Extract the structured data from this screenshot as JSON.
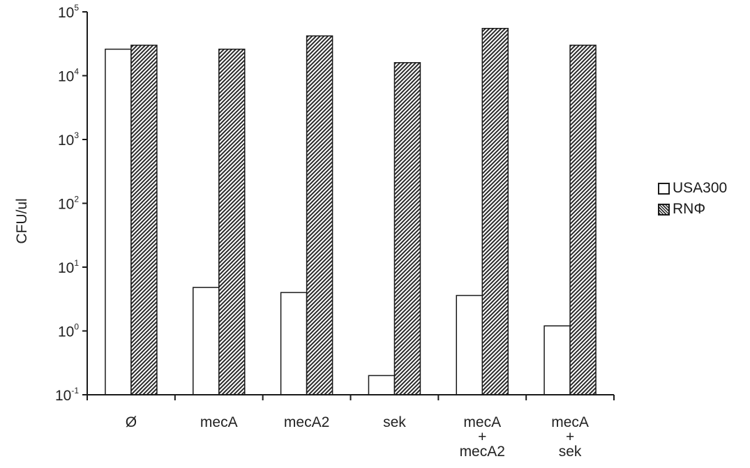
{
  "chart_data": {
    "type": "bar",
    "scale": "log",
    "ylabel": "CFU/ul",
    "xlabel": "",
    "title": "",
    "yticks": [
      {
        "base": "10",
        "exp": "-1",
        "value": 0.1
      },
      {
        "base": "10",
        "exp": "0",
        "value": 1
      },
      {
        "base": "10",
        "exp": "1",
        "value": 10
      },
      {
        "base": "10",
        "exp": "2",
        "value": 100
      },
      {
        "base": "10",
        "exp": "3",
        "value": 1000
      },
      {
        "base": "10",
        "exp": "4",
        "value": 10000
      },
      {
        "base": "10",
        "exp": "5",
        "value": 100000
      }
    ],
    "ylim": [
      0.1,
      100000
    ],
    "categories": [
      [
        "Ø"
      ],
      [
        "mecA"
      ],
      [
        "mecA2"
      ],
      [
        "sek"
      ],
      [
        "mecA",
        "+",
        "mecA2"
      ],
      [
        "mecA",
        "+",
        "sek"
      ]
    ],
    "series": [
      {
        "name": "USA300",
        "fill": "white",
        "values": [
          26000,
          4.8,
          4.0,
          0.2,
          3.6,
          1.2
        ]
      },
      {
        "name": "RNΦ",
        "fill": "hatched",
        "values": [
          30000,
          26000,
          42000,
          16000,
          55000,
          30000
        ]
      }
    ],
    "legend_position": "right",
    "grid": false
  }
}
